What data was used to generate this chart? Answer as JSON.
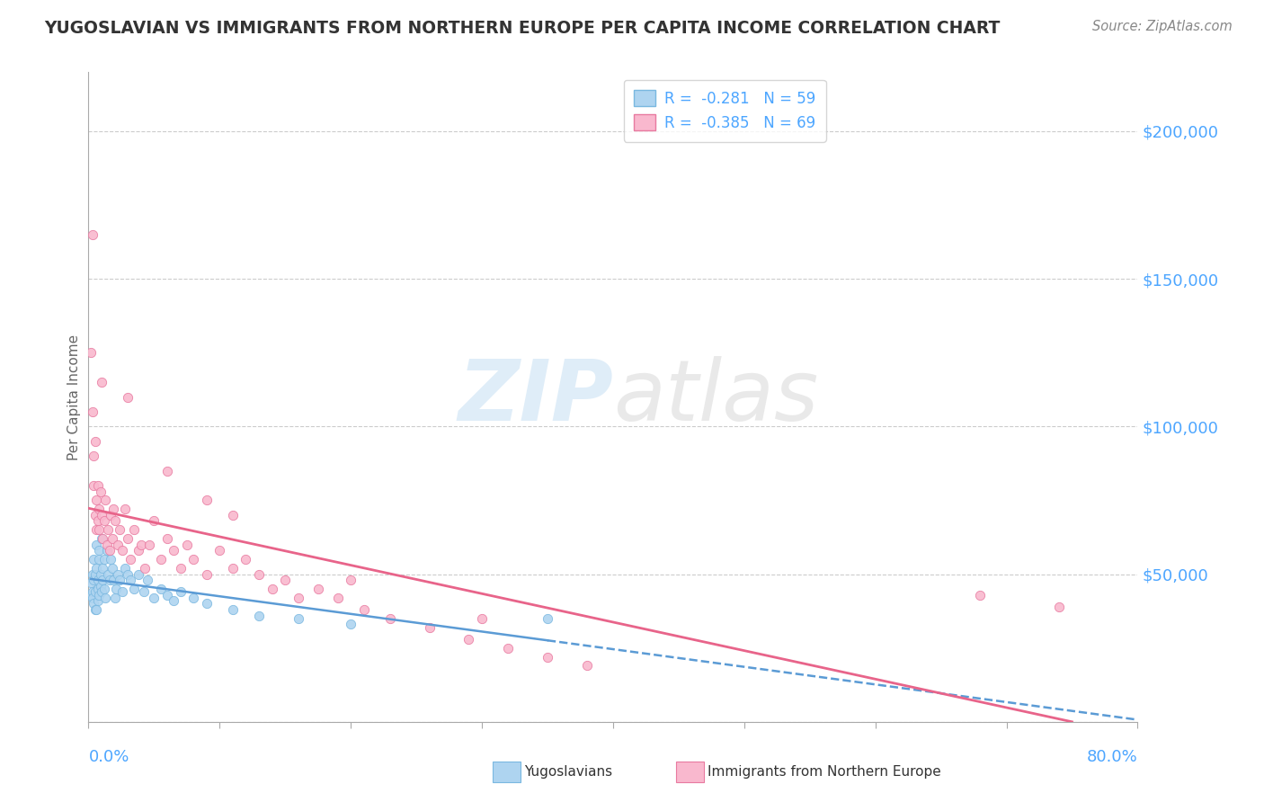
{
  "title": "YUGOSLAVIAN VS IMMIGRANTS FROM NORTHERN EUROPE PER CAPITA INCOME CORRELATION CHART",
  "source_text": "Source: ZipAtlas.com",
  "ylabel": "Per Capita Income",
  "xlim": [
    0.0,
    0.8
  ],
  "ylim": [
    0,
    220000
  ],
  "ytick_vals": [
    0,
    50000,
    100000,
    150000,
    200000
  ],
  "ytick_labels": [
    "",
    "$50,000",
    "$100,000",
    "$150,000",
    "$200,000"
  ],
  "watermark_zip": "ZIP",
  "watermark_atlas": "atlas",
  "background_color": "#ffffff",
  "grid_color": "#cccccc",
  "axis_color": "#aaaaaa",
  "tick_color": "#4da6ff",
  "title_color": "#333333",
  "source_color": "#888888",
  "series_blue": {
    "scatter_color": "#aed4f0",
    "scatter_edge": "#7ab8e0",
    "line_color": "#5b9bd5",
    "x": [
      0.002,
      0.002,
      0.003,
      0.003,
      0.003,
      0.004,
      0.004,
      0.004,
      0.005,
      0.005,
      0.005,
      0.006,
      0.006,
      0.006,
      0.007,
      0.007,
      0.007,
      0.008,
      0.008,
      0.008,
      0.009,
      0.009,
      0.01,
      0.01,
      0.011,
      0.011,
      0.012,
      0.012,
      0.013,
      0.014,
      0.015,
      0.016,
      0.017,
      0.018,
      0.019,
      0.02,
      0.021,
      0.022,
      0.024,
      0.026,
      0.028,
      0.03,
      0.032,
      0.035,
      0.038,
      0.042,
      0.045,
      0.05,
      0.055,
      0.06,
      0.065,
      0.07,
      0.08,
      0.09,
      0.11,
      0.13,
      0.16,
      0.2,
      0.35
    ],
    "y": [
      43000,
      47000,
      50000,
      44000,
      42000,
      55000,
      40000,
      48000,
      38000,
      50000,
      44000,
      60000,
      38000,
      52000,
      45000,
      41000,
      48000,
      55000,
      43000,
      58000,
      46000,
      50000,
      44000,
      62000,
      48000,
      52000,
      45000,
      55000,
      42000,
      58000,
      50000,
      48000,
      55000,
      52000,
      48000,
      42000,
      45000,
      50000,
      48000,
      44000,
      52000,
      50000,
      48000,
      45000,
      50000,
      44000,
      48000,
      42000,
      45000,
      43000,
      41000,
      44000,
      42000,
      40000,
      38000,
      36000,
      35000,
      33000,
      35000
    ]
  },
  "series_pink": {
    "scatter_color": "#f9b8ce",
    "scatter_edge": "#e87aa0",
    "line_color": "#e8648a",
    "x": [
      0.002,
      0.003,
      0.003,
      0.004,
      0.004,
      0.005,
      0.005,
      0.006,
      0.006,
      0.007,
      0.007,
      0.008,
      0.008,
      0.009,
      0.01,
      0.01,
      0.011,
      0.012,
      0.013,
      0.014,
      0.015,
      0.016,
      0.017,
      0.018,
      0.019,
      0.02,
      0.022,
      0.024,
      0.026,
      0.028,
      0.03,
      0.032,
      0.035,
      0.038,
      0.04,
      0.043,
      0.046,
      0.05,
      0.055,
      0.06,
      0.065,
      0.07,
      0.075,
      0.08,
      0.09,
      0.1,
      0.11,
      0.12,
      0.13,
      0.14,
      0.15,
      0.16,
      0.175,
      0.19,
      0.21,
      0.23,
      0.26,
      0.29,
      0.32,
      0.35,
      0.38,
      0.03,
      0.06,
      0.09,
      0.11,
      0.2,
      0.3,
      0.68,
      0.74
    ],
    "y": [
      125000,
      165000,
      105000,
      90000,
      80000,
      70000,
      95000,
      65000,
      75000,
      68000,
      80000,
      72000,
      65000,
      78000,
      70000,
      115000,
      62000,
      68000,
      75000,
      60000,
      65000,
      58000,
      70000,
      62000,
      72000,
      68000,
      60000,
      65000,
      58000,
      72000,
      62000,
      55000,
      65000,
      58000,
      60000,
      52000,
      60000,
      68000,
      55000,
      62000,
      58000,
      52000,
      60000,
      55000,
      50000,
      58000,
      52000,
      55000,
      50000,
      45000,
      48000,
      42000,
      45000,
      42000,
      38000,
      35000,
      32000,
      28000,
      25000,
      22000,
      19000,
      110000,
      85000,
      75000,
      70000,
      48000,
      35000,
      43000,
      39000
    ]
  },
  "legend_r_blue": "R =  -0.281",
  "legend_n_blue": "N = 59",
  "legend_r_pink": "R =  -0.385",
  "legend_n_pink": "N = 69",
  "bottom_label_blue": "Yugoslavians",
  "bottom_label_pink": "Immigrants from Northern Europe"
}
